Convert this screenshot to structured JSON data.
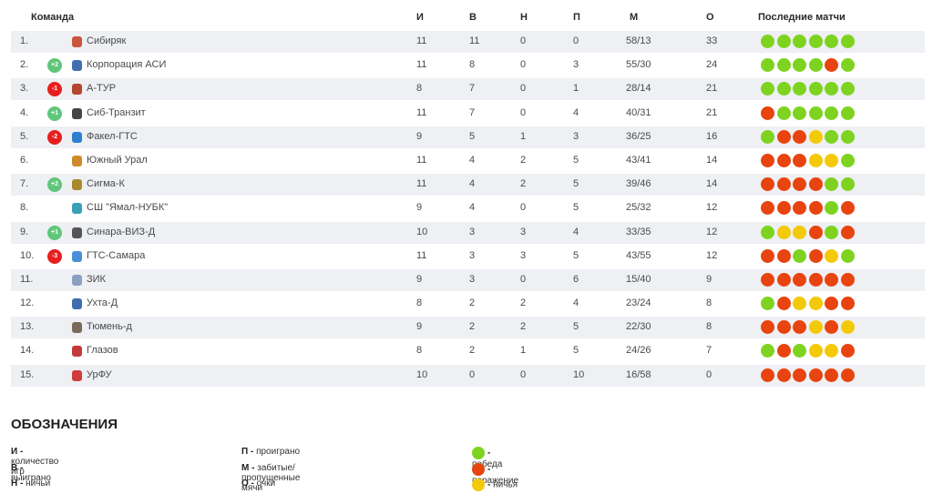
{
  "header": {
    "team": "Команда",
    "i": "И",
    "w": "В",
    "d": "Н",
    "l": "П",
    "m": "М",
    "pts": "О",
    "last": "Последние матчи"
  },
  "colors": {
    "win": "#7ed321",
    "loss": "#e8440f",
    "draw": "#f3c90a",
    "up": "#5fc67a",
    "down": "#e81e1e"
  },
  "rows": [
    {
      "pos": "1.",
      "change": "",
      "name": "Сибиряк",
      "logo_color": "#c9553c",
      "i": "11",
      "w": "11",
      "d": "0",
      "l": "0",
      "m": "58/13",
      "pts": "33",
      "results": [
        "W",
        "W",
        "W",
        "W",
        "W",
        "W"
      ]
    },
    {
      "pos": "2.",
      "change": "+2",
      "name": "Корпорация АСИ",
      "logo_color": "#3f6fb0",
      "i": "11",
      "w": "8",
      "d": "0",
      "l": "3",
      "m": "55/30",
      "pts": "24",
      "results": [
        "W",
        "W",
        "W",
        "W",
        "L",
        "W"
      ]
    },
    {
      "pos": "3.",
      "change": "-1",
      "name": "А-ТУР",
      "logo_color": "#b5452e",
      "i": "8",
      "w": "7",
      "d": "0",
      "l": "1",
      "m": "28/14",
      "pts": "21",
      "results": [
        "W",
        "W",
        "W",
        "W",
        "W",
        "W"
      ]
    },
    {
      "pos": "4.",
      "change": "+1",
      "name": "Сиб-Транзит",
      "logo_color": "#444444",
      "i": "11",
      "w": "7",
      "d": "0",
      "l": "4",
      "m": "40/31",
      "pts": "21",
      "results": [
        "L",
        "W",
        "W",
        "W",
        "W",
        "W"
      ]
    },
    {
      "pos": "5.",
      "change": "-2",
      "name": "Факел-ГТС",
      "logo_color": "#2f7fd0",
      "i": "9",
      "w": "5",
      "d": "1",
      "l": "3",
      "m": "36/25",
      "pts": "16",
      "results": [
        "W",
        "L",
        "L",
        "D",
        "W",
        "W"
      ]
    },
    {
      "pos": "6.",
      "change": "",
      "name": "Южный Урал",
      "logo_color": "#d08a2a",
      "i": "11",
      "w": "4",
      "d": "2",
      "l": "5",
      "m": "43/41",
      "pts": "14",
      "results": [
        "L",
        "L",
        "L",
        "D",
        "D",
        "W"
      ]
    },
    {
      "pos": "7.",
      "change": "+2",
      "name": "Сигма-К",
      "logo_color": "#a8892e",
      "i": "11",
      "w": "4",
      "d": "2",
      "l": "5",
      "m": "39/46",
      "pts": "14",
      "results": [
        "L",
        "L",
        "L",
        "L",
        "W",
        "W"
      ]
    },
    {
      "pos": "8.",
      "change": "",
      "name": "СШ \"Ямал-НУБК\"",
      "logo_color": "#3aa0b8",
      "i": "9",
      "w": "4",
      "d": "0",
      "l": "5",
      "m": "25/32",
      "pts": "12",
      "results": [
        "L",
        "L",
        "L",
        "L",
        "W",
        "L"
      ]
    },
    {
      "pos": "9.",
      "change": "+1",
      "name": "Синара-ВИЗ-Д",
      "logo_color": "#555555",
      "i": "10",
      "w": "3",
      "d": "3",
      "l": "4",
      "m": "33/35",
      "pts": "12",
      "results": [
        "W",
        "D",
        "D",
        "L",
        "W",
        "L"
      ]
    },
    {
      "pos": "10.",
      "change": "-3",
      "name": "ГТС-Самара",
      "logo_color": "#4a8ed8",
      "i": "11",
      "w": "3",
      "d": "3",
      "l": "5",
      "m": "43/55",
      "pts": "12",
      "results": [
        "L",
        "L",
        "W",
        "L",
        "D",
        "W"
      ]
    },
    {
      "pos": "11.",
      "change": "",
      "name": "ЗИК",
      "logo_color": "#8aa0c0",
      "i": "9",
      "w": "3",
      "d": "0",
      "l": "6",
      "m": "15/40",
      "pts": "9",
      "results": [
        "L",
        "L",
        "L",
        "L",
        "L",
        "L"
      ]
    },
    {
      "pos": "12.",
      "change": "",
      "name": "Ухта-Д",
      "logo_color": "#3d6fb0",
      "i": "8",
      "w": "2",
      "d": "2",
      "l": "4",
      "m": "23/24",
      "pts": "8",
      "results": [
        "W",
        "L",
        "D",
        "D",
        "L",
        "L"
      ]
    },
    {
      "pos": "13.",
      "change": "",
      "name": "Тюмень-д",
      "logo_color": "#7a6a5a",
      "i": "9",
      "w": "2",
      "d": "2",
      "l": "5",
      "m": "22/30",
      "pts": "8",
      "results": [
        "L",
        "L",
        "L",
        "D",
        "L",
        "D"
      ]
    },
    {
      "pos": "14.",
      "change": "",
      "name": "Глазов",
      "logo_color": "#c23a3a",
      "i": "8",
      "w": "2",
      "d": "1",
      "l": "5",
      "m": "24/26",
      "pts": "7",
      "results": [
        "W",
        "L",
        "W",
        "D",
        "D",
        "L"
      ]
    },
    {
      "pos": "15.",
      "change": "",
      "name": "УрФУ",
      "logo_color": "#d03c3c",
      "i": "10",
      "w": "0",
      "d": "0",
      "l": "10",
      "m": "16/58",
      "pts": "0",
      "results": [
        "L",
        "L",
        "L",
        "L",
        "L",
        "L"
      ]
    }
  ],
  "legend": {
    "title": "ОБОЗНАЧЕНИЯ",
    "col1": [
      {
        "key": "И -",
        "text": "количество игр"
      },
      {
        "key": "В -",
        "text": "выиграно"
      },
      {
        "key": "Н -",
        "text": "ничьи"
      }
    ],
    "col2": [
      {
        "key": "П -",
        "text": "проиграно"
      },
      {
        "key": "М -",
        "text": "забитые/пропущенные мячи"
      },
      {
        "key": "О -",
        "text": "очки"
      }
    ],
    "col3": [
      {
        "key": "-",
        "text": "победа",
        "color": "#7ed321"
      },
      {
        "key": "-",
        "text": "поражение",
        "color": "#e8440f"
      },
      {
        "key": "-",
        "text": "ничья",
        "color": "#f3c90a"
      }
    ]
  }
}
